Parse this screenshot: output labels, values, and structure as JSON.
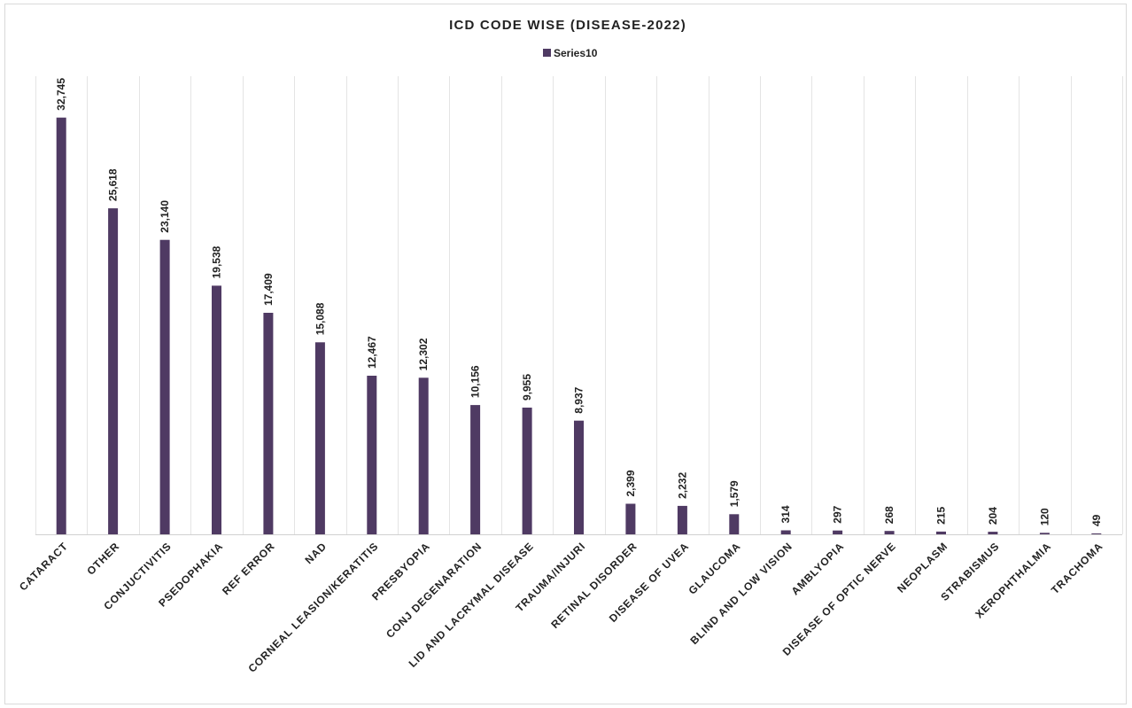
{
  "chart_data": {
    "type": "bar",
    "title": "ICD CODE WISE (DISEASE-2022)",
    "xlabel": "",
    "ylabel": "",
    "legend_position": "top-center",
    "grid": "vertical-category-lines",
    "ylim": [
      0,
      36000
    ],
    "bar_color": "#4f3a63",
    "categories": [
      "CATARACT",
      "OTHER",
      "CONJUCTIVITIS",
      "PSEDOPHAKIA",
      "REF ERROR",
      "NAD",
      "CORNEAL LEASION/KERATITIS",
      "PRESBYOPIA",
      "CONJ DEGENARATION",
      "LID AND LACRYMAL DISEASE",
      "TRAUMA/INJURI",
      "RETINAL DISORDER",
      "DISEASE OF UVEA",
      "GLAUCOMA",
      "BLIND AND LOW VISION",
      "AMBLYOPIA",
      "DISEASE OF OPTIC NERVE",
      "NEOPLASM",
      "STRABISMUS",
      "XEROPHTHALMIA",
      "TRACHOMA"
    ],
    "series": [
      {
        "name": "Series10",
        "values": [
          32745,
          25618,
          23140,
          19538,
          17409,
          15088,
          12467,
          12302,
          10156,
          9955,
          8937,
          2399,
          2232,
          1579,
          314,
          297,
          268,
          215,
          204,
          120,
          49
        ],
        "labels": [
          "32,745",
          "25,618",
          "23,140",
          "19,538",
          "17,409",
          "15,088",
          "12,467",
          "12,302",
          "10,156",
          "9,955",
          "8,937",
          "2,399",
          "2,232",
          "1,579",
          "314",
          "297",
          "268",
          "215",
          "204",
          "120",
          "49"
        ]
      }
    ]
  }
}
